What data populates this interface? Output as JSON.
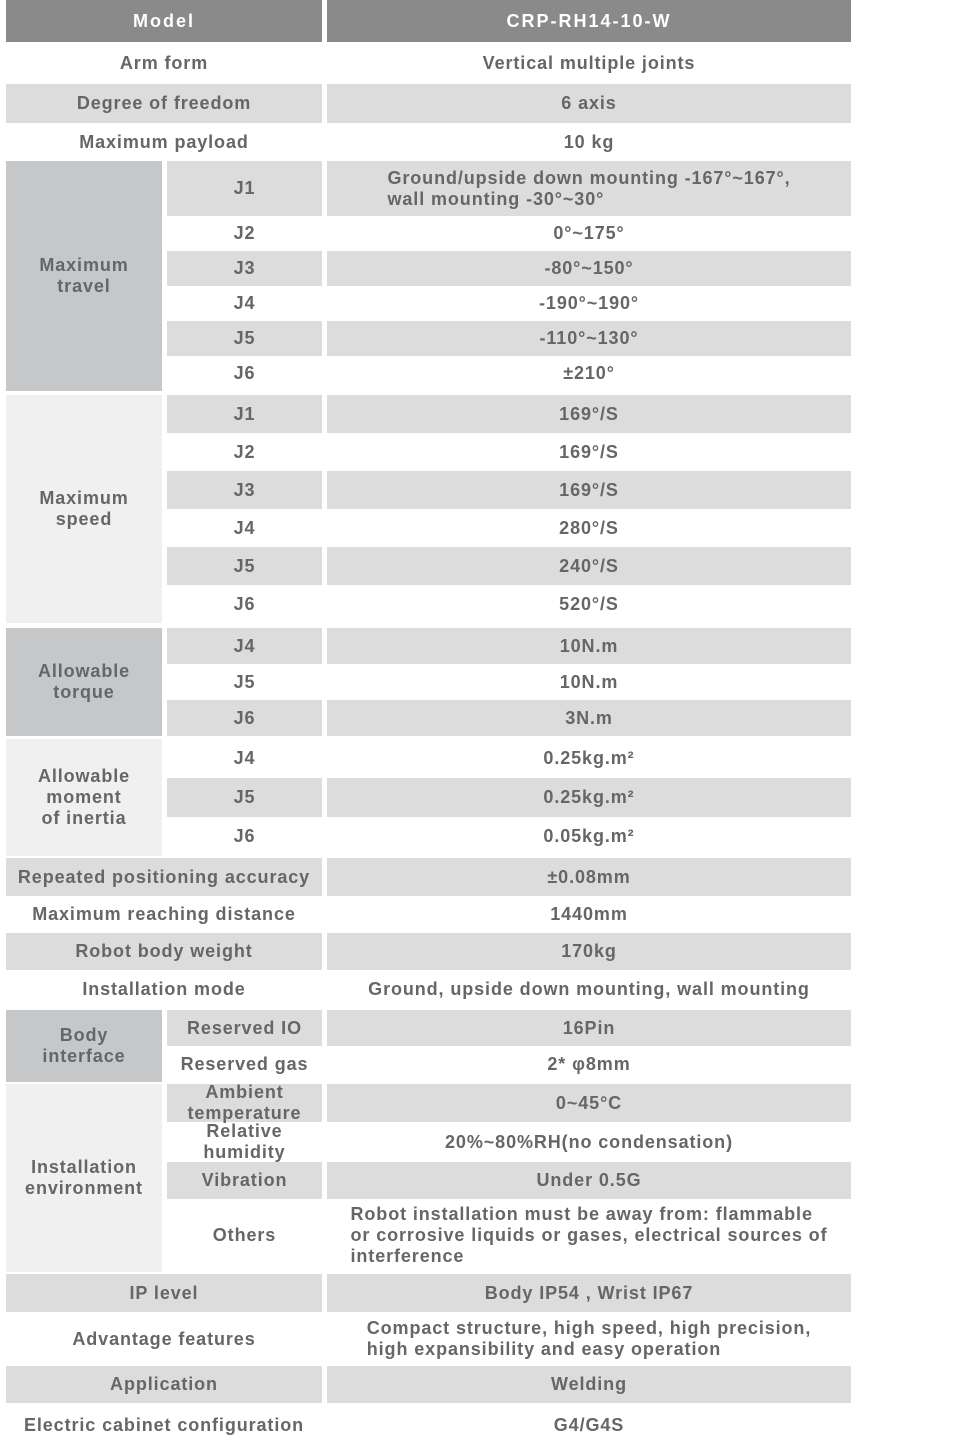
{
  "colors": {
    "header_bg": "#8a8a8a",
    "header_text": "#ffffff",
    "stripe_bg": "#dcdcdc",
    "group_dark_bg": "#c6c7c8",
    "group_light_bg": "#f0f0f0",
    "text": "#64666a"
  },
  "header": {
    "label": "Model",
    "value": "CRP-RH14-10-W"
  },
  "rows_top": [
    {
      "label": "Arm form",
      "value": "Vertical multiple joints"
    },
    {
      "label": "Degree of freedom",
      "value": "6 axis"
    },
    {
      "label": "Maximum payload",
      "value": "10 kg"
    }
  ],
  "maximum_travel": {
    "label": "Maximum\ntravel",
    "rows": [
      {
        "joint": "J1",
        "value": "Ground/upside down mounting -167°~167°,\nwall mounting -30°~30°"
      },
      {
        "joint": "J2",
        "value": "0°~175°"
      },
      {
        "joint": "J3",
        "value": "-80°~150°"
      },
      {
        "joint": "J4",
        "value": "-190°~190°"
      },
      {
        "joint": "J5",
        "value": "-110°~130°"
      },
      {
        "joint": "J6",
        "value": "±210°"
      }
    ]
  },
  "maximum_speed": {
    "label": "Maximum\nspeed",
    "rows": [
      {
        "joint": "J1",
        "value": "169°/S"
      },
      {
        "joint": "J2",
        "value": "169°/S"
      },
      {
        "joint": "J3",
        "value": "169°/S"
      },
      {
        "joint": "J4",
        "value": "280°/S"
      },
      {
        "joint": "J5",
        "value": "240°/S"
      },
      {
        "joint": "J6",
        "value": "520°/S"
      }
    ]
  },
  "allowable_torque": {
    "label": "Allowable\ntorque",
    "rows": [
      {
        "joint": "J4",
        "value": "10N.m"
      },
      {
        "joint": "J5",
        "value": "10N.m"
      },
      {
        "joint": "J6",
        "value": "3N.m"
      }
    ]
  },
  "allowable_inertia": {
    "label": "Allowable\nmoment\nof inertia",
    "rows": [
      {
        "joint": "J4",
        "value": "0.25kg.m²"
      },
      {
        "joint": "J5",
        "value": "0.25kg.m²"
      },
      {
        "joint": "J6",
        "value": "0.05kg.m²"
      }
    ]
  },
  "rows_mid": [
    {
      "label": "Repeated positioning accuracy",
      "value": "±0.08mm"
    },
    {
      "label": "Maximum reaching distance",
      "value": "1440mm"
    },
    {
      "label": "Robot body weight",
      "value": "170kg"
    },
    {
      "label": "Installation mode",
      "value": "Ground, upside down mounting, wall mounting"
    }
  ],
  "body_interface": {
    "label": "Body\ninterface",
    "rows": [
      {
        "name": "Reserved IO",
        "value": "16Pin"
      },
      {
        "name": "Reserved gas",
        "value": "2* φ8mm"
      }
    ]
  },
  "installation_environment": {
    "label": "Installation\nenvironment",
    "rows": [
      {
        "name": "Ambient\ntemperature",
        "value": "0~45°C"
      },
      {
        "name": "Relative\nhumidity",
        "value": "20%~80%RH(no condensation)"
      },
      {
        "name": "Vibration",
        "value": "Under 0.5G"
      },
      {
        "name": "Others",
        "value": "Robot installation must be away from: flammable\nor corrosive liquids or gases, electrical sources of\ninterference"
      }
    ]
  },
  "rows_bottom": [
    {
      "label": "IP level",
      "value": "Body IP54 , Wrist IP67"
    },
    {
      "label": "Advantage features",
      "value": "Compact structure, high speed, high precision,\nhigh expansibility and easy operation"
    },
    {
      "label": "Application",
      "value": "Welding"
    },
    {
      "label": "Electric cabinet configuration",
      "value": "G4/G4S"
    }
  ]
}
